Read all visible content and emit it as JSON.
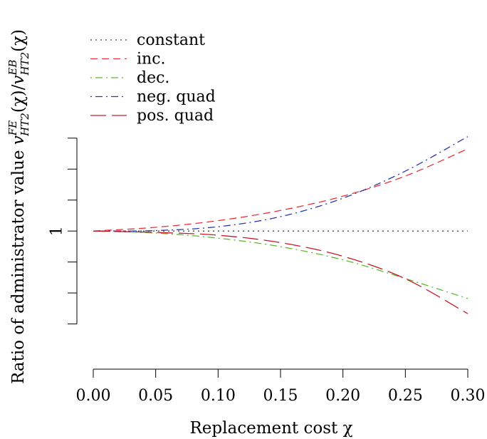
{
  "chart_data": {
    "type": "line",
    "title": "",
    "xlabel": "Replacement cost χ",
    "ylabel": "Ratio of administrator value v_HT2^FE(χ)/v_HT2^EB(χ)",
    "ylabel_parts": {
      "prefix": "Ratio of administrator value ",
      "v1": "v",
      "sup1": "FE",
      "sub1": "HT2",
      "mid": "(χ)/",
      "v2": "v",
      "sup2": "EB",
      "sub2": "HT2",
      "suffix": "(χ)"
    },
    "xlim": [
      0,
      0.3
    ],
    "ylim": [
      0.88,
      1.1
    ],
    "x_ticks": [
      0.0,
      0.05,
      0.1,
      0.15,
      0.2,
      0.25,
      0.3
    ],
    "x_tick_labels": [
      "0.00",
      "0.05",
      "0.10",
      "0.15",
      "0.20",
      "0.25",
      "0.30"
    ],
    "y_ticks": [
      0.9,
      0.92,
      0.94,
      0.96,
      0.98,
      1.0,
      1.02
    ],
    "y_tick_labels": [
      "",
      "",
      "",
      "1",
      "",
      "",
      ""
    ],
    "grid": false,
    "legend_position": "top-left",
    "x": [
      0.0,
      0.05,
      0.1,
      0.15,
      0.2,
      0.25,
      0.3
    ],
    "series": [
      {
        "name": "constant",
        "color": "#444444",
        "dash": "dotted",
        "values": [
          0.96,
          0.96,
          0.96,
          0.96,
          0.96,
          0.96,
          0.96
        ]
      },
      {
        "name": "inc.",
        "color": "#e8333a",
        "dash": "dashed",
        "values": [
          0.96,
          0.9624,
          0.9667,
          0.9733,
          0.9825,
          0.9955,
          1.0131
        ]
      },
      {
        "name": "dec.",
        "color": "#5fb830",
        "dash": "dotdash",
        "values": [
          0.96,
          0.9587,
          0.9554,
          0.9499,
          0.9414,
          0.9293,
          0.9164
        ]
      },
      {
        "name": "neg. quad",
        "color": "#2b3aa6",
        "dash": "dotdash",
        "values": [
          0.96,
          0.9603,
          0.9628,
          0.9693,
          0.9812,
          0.9987,
          1.021
        ]
      },
      {
        "name": "pos. quad",
        "color": "#c41a28",
        "dash": "longdash",
        "values": [
          0.96,
          0.9591,
          0.9573,
          0.9525,
          0.9437,
          0.9292,
          0.9066
        ]
      }
    ]
  }
}
